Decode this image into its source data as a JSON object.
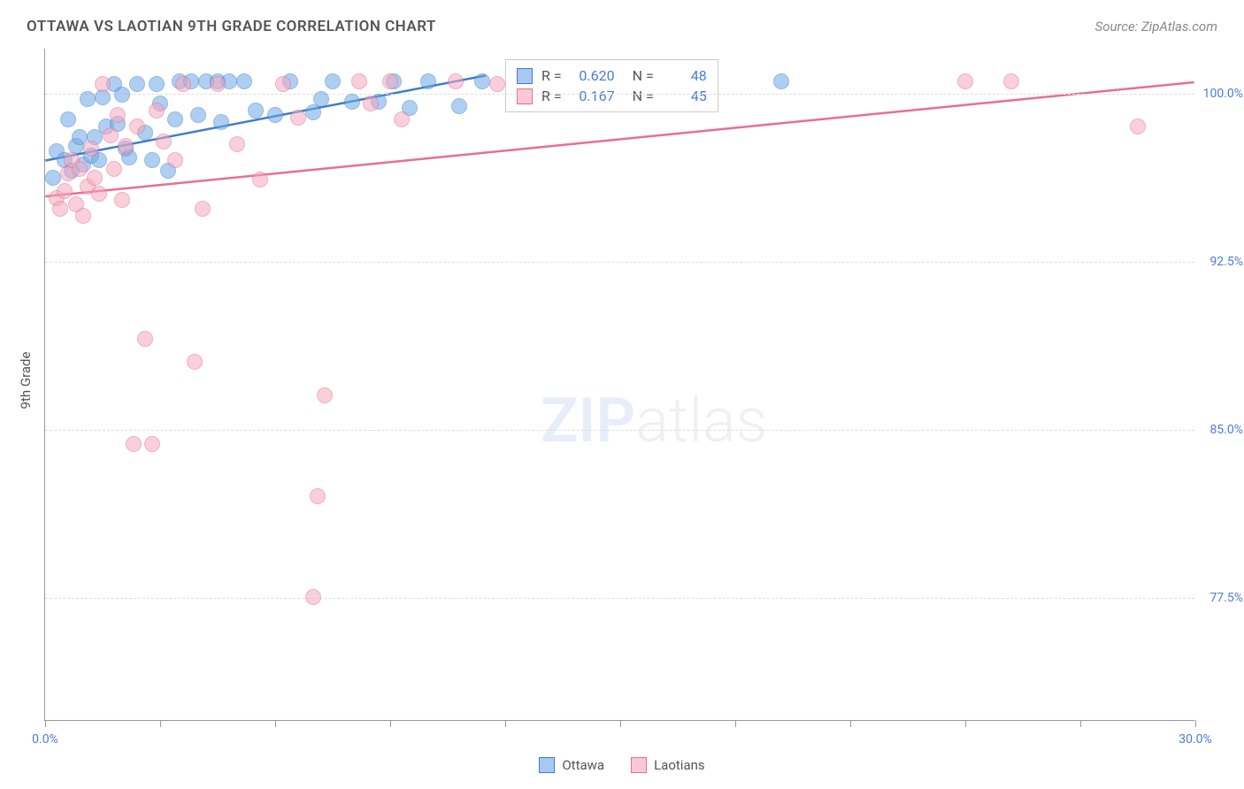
{
  "title": "OTTAWA VS LAOTIAN 9TH GRADE CORRELATION CHART",
  "source": "Source: ZipAtlas.com",
  "ylabel": "9th Grade",
  "watermark": {
    "part1": "ZIP",
    "part2": "atlas"
  },
  "chart": {
    "type": "scatter",
    "background_color": "#ffffff",
    "grid_color": "#dddddd",
    "axis_color": "#999999",
    "label_color": "#4a7dd6",
    "text_color": "#555555",
    "label_fontsize": 14,
    "title_fontsize": 17,
    "xlim": [
      0,
      30
    ],
    "ylim": [
      72,
      102
    ],
    "xticks": [
      0,
      3,
      6,
      9,
      12,
      15,
      18,
      21,
      24,
      27,
      30
    ],
    "xtick_labels": {
      "0": "0.0%",
      "30": "30.0%"
    },
    "yticks": [
      77.5,
      85.0,
      92.5,
      100.0
    ],
    "ytick_labels": [
      "77.5%",
      "85.0%",
      "92.5%",
      "100.0%"
    ],
    "marker_radius": 9,
    "marker_opacity": 0.55,
    "line_width": 2.5,
    "series": [
      {
        "name": "Ottawa",
        "color_fill": "#6fa8e8",
        "color_stroke": "#3d7fc9",
        "R": "0.620",
        "N": "48",
        "trend": {
          "x1": 0,
          "y1": 97.0,
          "x2": 11.5,
          "y2": 100.8
        },
        "points": [
          [
            0.2,
            96.2
          ],
          [
            0.3,
            97.4
          ],
          [
            0.5,
            97.0
          ],
          [
            0.6,
            98.8
          ],
          [
            0.7,
            96.5
          ],
          [
            0.8,
            97.6
          ],
          [
            0.9,
            98.0
          ],
          [
            1.0,
            96.8
          ],
          [
            1.1,
            99.7
          ],
          [
            1.2,
            97.2
          ],
          [
            1.3,
            98.0
          ],
          [
            1.4,
            97.0
          ],
          [
            1.5,
            99.8
          ],
          [
            1.6,
            98.5
          ],
          [
            1.8,
            100.4
          ],
          [
            1.9,
            98.6
          ],
          [
            2.0,
            99.9
          ],
          [
            2.1,
            97.5
          ],
          [
            2.2,
            97.1
          ],
          [
            2.4,
            100.4
          ],
          [
            2.6,
            98.2
          ],
          [
            2.8,
            97.0
          ],
          [
            2.9,
            100.4
          ],
          [
            3.0,
            99.5
          ],
          [
            3.2,
            96.5
          ],
          [
            3.4,
            98.8
          ],
          [
            3.5,
            100.5
          ],
          [
            3.8,
            100.5
          ],
          [
            4.0,
            99.0
          ],
          [
            4.2,
            100.5
          ],
          [
            4.5,
            100.5
          ],
          [
            4.6,
            98.7
          ],
          [
            4.8,
            100.5
          ],
          [
            5.2,
            100.5
          ],
          [
            5.5,
            99.2
          ],
          [
            6.0,
            99.0
          ],
          [
            6.4,
            100.5
          ],
          [
            7.0,
            99.1
          ],
          [
            7.2,
            99.7
          ],
          [
            7.5,
            100.5
          ],
          [
            8.0,
            99.6
          ],
          [
            8.7,
            99.6
          ],
          [
            9.1,
            100.5
          ],
          [
            9.5,
            99.3
          ],
          [
            10.0,
            100.5
          ],
          [
            10.8,
            99.4
          ],
          [
            11.4,
            100.5
          ],
          [
            19.2,
            100.5
          ]
        ]
      },
      {
        "name": "Laotians",
        "color_fill": "#f4a8bf",
        "color_stroke": "#e86e94",
        "R": "0.167",
        "N": "45",
        "trend": {
          "x1": 0,
          "y1": 95.4,
          "x2": 30,
          "y2": 100.5
        },
        "points": [
          [
            0.3,
            95.3
          ],
          [
            0.4,
            94.8
          ],
          [
            0.5,
            95.6
          ],
          [
            0.6,
            96.4
          ],
          [
            0.7,
            97.0
          ],
          [
            0.8,
            95.0
          ],
          [
            0.9,
            96.6
          ],
          [
            1.0,
            94.5
          ],
          [
            1.1,
            95.8
          ],
          [
            1.2,
            97.5
          ],
          [
            1.3,
            96.2
          ],
          [
            1.4,
            95.5
          ],
          [
            1.5,
            100.4
          ],
          [
            1.7,
            98.1
          ],
          [
            1.8,
            96.6
          ],
          [
            1.9,
            99.0
          ],
          [
            2.0,
            95.2
          ],
          [
            2.1,
            97.6
          ],
          [
            2.3,
            84.3
          ],
          [
            2.4,
            98.5
          ],
          [
            2.6,
            89.0
          ],
          [
            2.8,
            84.3
          ],
          [
            2.9,
            99.2
          ],
          [
            3.1,
            97.8
          ],
          [
            3.4,
            97.0
          ],
          [
            3.6,
            100.4
          ],
          [
            3.9,
            88.0
          ],
          [
            4.1,
            94.8
          ],
          [
            4.5,
            100.4
          ],
          [
            5.0,
            97.7
          ],
          [
            5.6,
            96.1
          ],
          [
            6.2,
            100.4
          ],
          [
            6.6,
            98.9
          ],
          [
            7.0,
            77.5
          ],
          [
            7.1,
            82.0
          ],
          [
            7.3,
            86.5
          ],
          [
            8.2,
            100.5
          ],
          [
            8.5,
            99.5
          ],
          [
            9.0,
            100.5
          ],
          [
            9.3,
            98.8
          ],
          [
            10.7,
            100.5
          ],
          [
            11.8,
            100.4
          ],
          [
            24.0,
            100.5
          ],
          [
            25.2,
            100.5
          ],
          [
            28.5,
            98.5
          ]
        ]
      }
    ]
  },
  "legend_top": {
    "rows": [
      {
        "swatch_fill": "#a8c8f0",
        "swatch_stroke": "#3d7fc9",
        "R_label": "R =",
        "R": "0.620",
        "N_label": "N =",
        "N": "48"
      },
      {
        "swatch_fill": "#f8c8d8",
        "swatch_stroke": "#e86e94",
        "R_label": "R =",
        "R": "0.167",
        "N_label": "N =",
        "N": "45"
      }
    ]
  },
  "legend_bottom": [
    {
      "swatch_fill": "#a8c8f0",
      "swatch_stroke": "#3d7fc9",
      "label": "Ottawa"
    },
    {
      "swatch_fill": "#f8c8d8",
      "swatch_stroke": "#e86e94",
      "label": "Laotians"
    }
  ]
}
